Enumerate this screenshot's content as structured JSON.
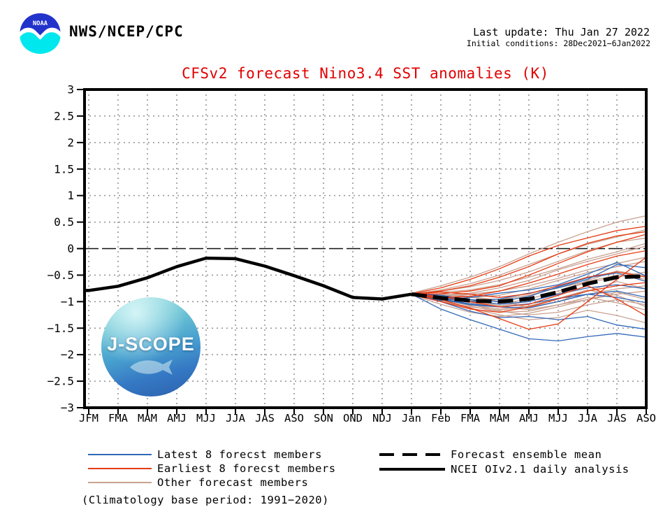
{
  "header": {
    "org": "NWS/NCEP/CPC",
    "noaa_logo_text": "NOAA",
    "last_update": "Last update: Thu Jan 27 2022",
    "initial_conditions": "Initial conditions: 28Dec2021−6Jan2022"
  },
  "title": "CFSv2 forecast Nino3.4 SST anomalies (K)",
  "watermark": {
    "text": "J-SCOPE"
  },
  "colors": {
    "latest_blue": "#3068b8",
    "earliest_red": "#e63a11",
    "other_tan": "#c9a191",
    "black": "#000000",
    "title_red": "#e10000",
    "noaa_blue": "#2233cc",
    "noaa_cyan": "#00e8ee",
    "grid_gray": "#909090"
  },
  "legend": {
    "items": [
      {
        "label": "Latest 8 forecst members",
        "color_key": "latest_blue"
      },
      {
        "label": "Earliest 8 forecst members",
        "color_key": "earliest_red"
      },
      {
        "label": "Other forecast members",
        "color_key": "other_tan"
      },
      {
        "label": "Forecast ensemble mean",
        "color_key": "black"
      },
      {
        "label": "NCEI OIv2.1 daily analysis",
        "color_key": "black"
      }
    ],
    "note": "(Climatology base period: 1991−2020)"
  },
  "chart_data": {
    "type": "line",
    "title": "CFSv2 forecast Nino3.4 SST anomalies (K)",
    "x_categories": [
      "JFM",
      "FMA",
      "MAM",
      "AMJ",
      "MJJ",
      "JJA",
      "JAS",
      "ASO",
      "SON",
      "OND",
      "NDJ",
      "Jan",
      "Feb",
      "FMA",
      "MAM",
      "AMJ",
      "MJJ",
      "JJA",
      "JAS",
      "ASO"
    ],
    "ylim": [
      -3,
      3
    ],
    "ytick_step": 0.5,
    "ytick_labels": [
      "3",
      "2.5",
      "2",
      "1.5",
      "1",
      "0.5",
      "0",
      "−0.5",
      "−1",
      "−1.5",
      "−2",
      "−2.5",
      "−3"
    ],
    "grid": "dotted",
    "observed": {
      "name": "NCEI OIv2.1 daily analysis",
      "x_start_index": 0,
      "values": [
        -0.79,
        -0.71,
        -0.55,
        -0.34,
        -0.18,
        -0.19,
        -0.33,
        -0.51,
        -0.7,
        -0.92,
        -0.95,
        -0.86
      ]
    },
    "ensemble_mean": {
      "name": "Forecast ensemble mean",
      "x_start_index": 11,
      "values": [
        -0.86,
        -0.93,
        -0.98,
        -1.0,
        -0.95,
        -0.82,
        -0.66,
        -0.54,
        -0.52
      ]
    },
    "members": {
      "x_start_index": 11,
      "other": {
        "name": "Other forecast members",
        "color_key": "other_tan",
        "series": [
          [
            -0.84,
            -0.7,
            -0.54,
            -0.34,
            -0.1,
            0.12,
            0.32,
            0.5,
            0.62
          ],
          [
            -0.86,
            -0.78,
            -0.66,
            -0.5,
            -0.3,
            -0.1,
            0.08,
            0.22,
            0.36
          ],
          [
            -0.85,
            -0.8,
            -0.72,
            -0.6,
            -0.44,
            -0.24,
            -0.04,
            0.12,
            0.2
          ],
          [
            -0.86,
            -0.88,
            -0.84,
            -0.74,
            -0.6,
            -0.4,
            -0.24,
            -0.1,
            0.05
          ],
          [
            -0.87,
            -0.9,
            -0.92,
            -0.88,
            -0.76,
            -0.6,
            -0.45,
            -0.34,
            -0.24
          ],
          [
            -0.85,
            -0.95,
            -1.0,
            -1.05,
            -0.95,
            -0.8,
            -0.64,
            -0.54,
            -0.44
          ],
          [
            -0.86,
            -1.0,
            -1.1,
            -1.16,
            -1.1,
            -1.0,
            -0.86,
            -0.76,
            -0.7
          ],
          [
            -0.87,
            -1.05,
            -1.2,
            -1.28,
            -1.22,
            -1.1,
            -0.96,
            -0.86,
            -0.8
          ],
          [
            -0.85,
            -0.92,
            -1.05,
            -1.18,
            -1.25,
            -1.2,
            -1.06,
            -0.96,
            -1.06
          ],
          [
            -0.86,
            -0.98,
            -1.12,
            -1.25,
            -1.34,
            -1.3,
            -1.16,
            -1.26,
            -1.4
          ],
          [
            -0.86,
            -0.85,
            -0.9,
            -1.0,
            -1.1,
            -1.0,
            -0.8,
            -0.62,
            -0.76
          ],
          [
            -0.85,
            -0.88,
            -0.98,
            -1.08,
            -1.0,
            -0.84,
            -0.6,
            -0.42,
            -0.52
          ],
          [
            -0.86,
            -0.92,
            -1.02,
            -1.1,
            -1.15,
            -1.06,
            -0.92,
            -1.02,
            -1.16
          ],
          [
            -0.87,
            -0.95,
            -1.08,
            -1.2,
            -1.18,
            -1.06,
            -0.96,
            -0.82,
            -0.96
          ],
          [
            -0.85,
            -0.82,
            -0.78,
            -0.68,
            -0.54,
            -0.38,
            -0.2,
            -0.06,
            0.1
          ],
          [
            -0.86,
            -0.9,
            -0.86,
            -0.8,
            -0.7,
            -0.56,
            -0.4,
            -0.28,
            -0.16
          ],
          [
            -0.86,
            -0.94,
            -1.06,
            -1.14,
            -1.08,
            -0.94,
            -0.78,
            -0.88,
            -1.1
          ],
          [
            -0.85,
            -0.86,
            -0.92,
            -0.96,
            -0.88,
            -0.74,
            -0.62,
            -0.5,
            -0.58
          ]
        ]
      },
      "latest": {
        "name": "Latest 8 forecst members",
        "color_key": "latest_blue",
        "series": [
          [
            -0.86,
            -1.14,
            -1.34,
            -1.52,
            -1.7,
            -1.74,
            -1.66,
            -1.6,
            -1.67
          ],
          [
            -0.86,
            -1.0,
            -1.18,
            -1.3,
            -1.28,
            -1.34,
            -1.28,
            -1.44,
            -1.52
          ],
          [
            -0.87,
            -0.96,
            -1.06,
            -1.1,
            -1.04,
            -0.94,
            -0.86,
            -0.92,
            -1.02
          ],
          [
            -0.85,
            -0.9,
            -0.96,
            -1.0,
            -0.9,
            -0.72,
            -0.55,
            -0.46,
            -0.62
          ],
          [
            -0.86,
            -0.92,
            -1.0,
            -0.95,
            -0.84,
            -0.74,
            -0.58,
            -0.3,
            -0.36
          ],
          [
            -0.87,
            -0.98,
            -0.92,
            -0.84,
            -0.78,
            -0.68,
            -0.48,
            -0.26,
            -0.52
          ],
          [
            -0.85,
            -0.88,
            -0.96,
            -1.05,
            -1.0,
            -0.86,
            -0.74,
            -0.68,
            -0.76
          ],
          [
            -0.86,
            -0.95,
            -1.04,
            -1.1,
            -1.12,
            -1.0,
            -0.86,
            -0.8,
            -0.92
          ]
        ]
      },
      "earliest": {
        "name": "Earliest 8 forecst members",
        "color_key": "earliest_red",
        "series": [
          [
            -0.85,
            -0.74,
            -0.58,
            -0.38,
            -0.14,
            0.06,
            0.2,
            0.34,
            0.42
          ],
          [
            -0.86,
            -0.8,
            -0.7,
            -0.54,
            -0.34,
            -0.1,
            0.1,
            0.24,
            0.32
          ],
          [
            -0.86,
            -0.85,
            -0.8,
            -0.7,
            -0.5,
            -0.28,
            -0.06,
            0.12,
            0.27
          ],
          [
            -0.87,
            -0.92,
            -0.9,
            -0.8,
            -0.65,
            -0.48,
            -0.3,
            -0.14,
            -0.04
          ],
          [
            -0.85,
            -0.96,
            -1.12,
            -1.32,
            -1.52,
            -1.42,
            -1.0,
            -0.58,
            -0.16
          ],
          [
            -0.86,
            -0.9,
            -1.0,
            -1.1,
            -1.05,
            -0.88,
            -0.7,
            -0.95,
            -1.27
          ],
          [
            -0.87,
            -1.0,
            -1.14,
            -1.2,
            -1.1,
            -0.95,
            -0.8,
            -0.7,
            -0.64
          ],
          [
            -0.85,
            -0.82,
            -0.86,
            -0.92,
            -0.85,
            -0.7,
            -0.54,
            -0.44,
            -0.54
          ]
        ]
      }
    }
  }
}
